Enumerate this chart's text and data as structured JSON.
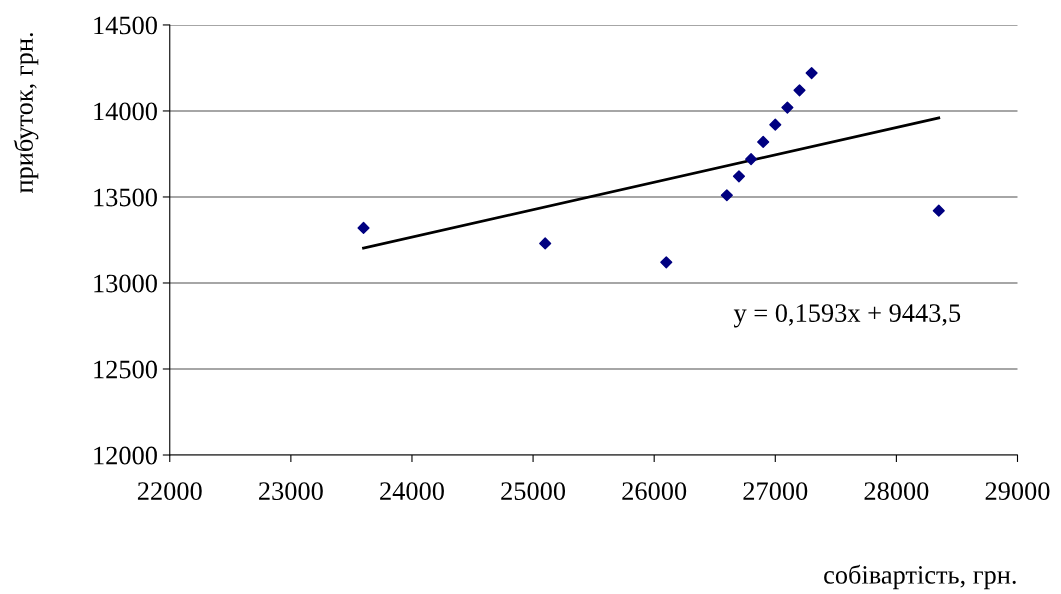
{
  "chart_data": {
    "type": "scatter",
    "xlabel": "собівартість, грн.",
    "ylabel": "прибуток, грн.",
    "series": [
      {
        "color": "#000080",
        "marker": "diamond",
        "x": [
          23600,
          25100,
          26100,
          26600,
          26700,
          26800,
          26900,
          27000,
          27100,
          27200,
          27300,
          28350
        ],
        "values": [
          13320,
          13230,
          13120,
          13510,
          13620,
          13720,
          13820,
          13920,
          14020,
          14120,
          14220,
          13420
        ]
      },
      {
        "type": "line",
        "color": "#000000",
        "marker": "none",
        "line_style": "solid",
        "x": [
          23600,
          28350
        ],
        "values": [
          13203,
          13960
        ]
      }
    ],
    "annotations": [
      "y = 0,1593x + 9443,5"
    ],
    "xlim": [
      22000,
      29000
    ],
    "xticks": [
      22000,
      23000,
      24000,
      25000,
      26000,
      27000,
      28000,
      29000
    ],
    "ylim": [
      12000,
      14500
    ],
    "yticks": [
      12000,
      12500,
      13000,
      13500,
      14000,
      14500
    ],
    "grid": "y",
    "legend": false
  }
}
